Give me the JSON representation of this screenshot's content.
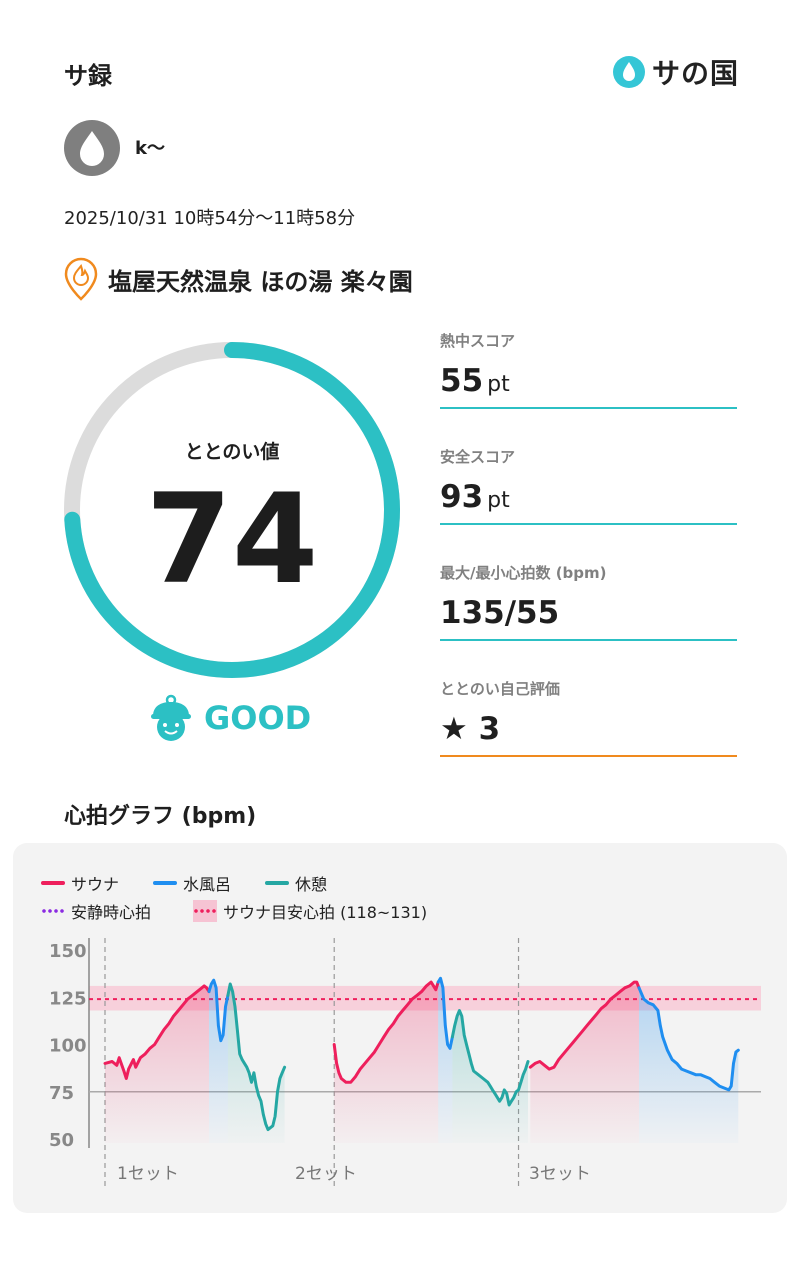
{
  "header": {
    "title": "サ録",
    "logo_text": "サの国"
  },
  "user": {
    "name": "k〜"
  },
  "session": {
    "datetime": "2025/10/31 10時54分〜11時58分"
  },
  "facility": {
    "name": "塩屋天然温泉 ほの湯 楽々園"
  },
  "score": {
    "label": "ととのい値",
    "value": "74",
    "fraction": 0.74,
    "status": "GOOD"
  },
  "metrics": [
    {
      "label": "熱中スコア",
      "value": "55",
      "unit": "pt"
    },
    {
      "label": "安全スコア",
      "value": "93",
      "unit": "pt"
    },
    {
      "label": "最大/最小心拍数 (bpm)",
      "value": "135/55",
      "unit": ""
    },
    {
      "label": "ととのい自己評価",
      "value": "★ 3",
      "unit": ""
    }
  ],
  "graph": {
    "title": "心拍グラフ (bpm)",
    "legend": {
      "sauna": "サウナ",
      "cold": "水風呂",
      "rest": "休憩",
      "resting": "安静時心拍",
      "target": "サウナ目安心拍 (118~131)"
    },
    "set_labels": [
      "1セット",
      "2セット",
      "3セット"
    ]
  },
  "colors": {
    "accent": "#2cc0c4",
    "sauna": "#ee1f5c",
    "cold": "#1f8ef0",
    "rest": "#25a7a3",
    "resting": "#8b2be2",
    "orange": "#f08a1e"
  },
  "chart_data": {
    "type": "line",
    "ylim": [
      45,
      155
    ],
    "yticks": [
      50,
      75,
      100,
      125,
      150
    ],
    "target_range": [
      118,
      131
    ],
    "target_line": 124,
    "resting_line": 75,
    "series": [
      {
        "name": "サウナ",
        "segments": [
          [
            [
              0,
              90
            ],
            [
              3,
              91
            ],
            [
              5,
              89
            ],
            [
              6,
              93
            ],
            [
              8,
              86
            ],
            [
              9,
              82
            ],
            [
              10,
              87
            ],
            [
              12,
              92
            ],
            [
              13,
              88
            ],
            [
              15,
              93
            ],
            [
              17,
              95
            ],
            [
              19,
              98
            ],
            [
              21,
              100
            ],
            [
              23,
              104
            ],
            [
              25,
              108
            ],
            [
              27,
              111
            ],
            [
              29,
              115
            ],
            [
              31,
              118
            ],
            [
              33,
              121
            ],
            [
              35,
              124
            ],
            [
              37,
              126
            ],
            [
              39,
              128
            ],
            [
              41,
              130
            ],
            [
              42,
              131
            ],
            [
              43,
              130
            ],
            [
              44,
              128
            ]
          ],
          [
            [
              97,
              100
            ],
            [
              98,
              90
            ],
            [
              99,
              85
            ],
            [
              100,
              82
            ],
            [
              102,
              80
            ],
            [
              104,
              80
            ],
            [
              106,
              83
            ],
            [
              108,
              87
            ],
            [
              110,
              90
            ],
            [
              112,
              93
            ],
            [
              114,
              96
            ],
            [
              116,
              100
            ],
            [
              118,
              104
            ],
            [
              120,
              108
            ],
            [
              122,
              111
            ],
            [
              124,
              115
            ],
            [
              126,
              118
            ],
            [
              128,
              121
            ],
            [
              130,
              124
            ],
            [
              132,
              126
            ],
            [
              134,
              128
            ],
            [
              136,
              131
            ],
            [
              138,
              133
            ],
            [
              139,
              131
            ],
            [
              140,
              129
            ],
            [
              141,
              133
            ]
          ],
          [
            [
              180,
              88
            ],
            [
              182,
              90
            ],
            [
              184,
              91
            ],
            [
              186,
              89
            ],
            [
              188,
              87
            ],
            [
              190,
              88
            ],
            [
              192,
              92
            ],
            [
              194,
              95
            ],
            [
              196,
              98
            ],
            [
              198,
              101
            ],
            [
              200,
              104
            ],
            [
              202,
              107
            ],
            [
              204,
              110
            ],
            [
              206,
              113
            ],
            [
              208,
              116
            ],
            [
              210,
              119
            ],
            [
              212,
              121
            ],
            [
              214,
              124
            ],
            [
              216,
              126
            ],
            [
              218,
              128
            ],
            [
              220,
              130
            ],
            [
              222,
              131
            ],
            [
              224,
              133
            ],
            [
              225,
              133
            ],
            [
              226,
              130
            ]
          ]
        ]
      },
      {
        "name": "水風呂",
        "segments": [
          [
            [
              44,
              128
            ],
            [
              45,
              132
            ],
            [
              46,
              134
            ],
            [
              47,
              130
            ],
            [
              48,
              110
            ],
            [
              49,
              102
            ],
            [
              50,
              105
            ],
            [
              51,
              120
            ],
            [
              52,
              126
            ]
          ],
          [
            [
              141,
              133
            ],
            [
              142,
              135
            ],
            [
              143,
              130
            ],
            [
              144,
              110
            ],
            [
              145,
              100
            ],
            [
              146,
              98
            ],
            [
              147,
              104
            ]
          ],
          [
            [
              226,
              130
            ],
            [
              228,
              124
            ],
            [
              230,
              122
            ],
            [
              232,
              121
            ],
            [
              234,
              118
            ],
            [
              235,
              110
            ],
            [
              236,
              104
            ],
            [
              238,
              97
            ],
            [
              240,
              92
            ],
            [
              242,
              90
            ],
            [
              244,
              87
            ],
            [
              246,
              86
            ],
            [
              248,
              85
            ],
            [
              250,
              84
            ],
            [
              252,
              84
            ],
            [
              254,
              83
            ],
            [
              256,
              82
            ],
            [
              258,
              80
            ],
            [
              260,
              78
            ],
            [
              262,
              77
            ],
            [
              264,
              76
            ],
            [
              265,
              78
            ],
            [
              266,
              90
            ],
            [
              267,
              96
            ],
            [
              268,
              97
            ]
          ]
        ]
      },
      {
        "name": "休憩",
        "segments": [
          [
            [
              52,
              126
            ],
            [
              53,
              132
            ],
            [
              54,
              128
            ],
            [
              55,
              120
            ],
            [
              56,
              108
            ],
            [
              57,
              95
            ],
            [
              58,
              92
            ],
            [
              60,
              88
            ],
            [
              61,
              85
            ],
            [
              62,
              80
            ],
            [
              63,
              85
            ],
            [
              64,
              78
            ],
            [
              65,
              73
            ],
            [
              66,
              70
            ],
            [
              67,
              63
            ],
            [
              68,
              58
            ],
            [
              69,
              55
            ],
            [
              70,
              56
            ],
            [
              71,
              57
            ],
            [
              72,
              62
            ],
            [
              73,
              75
            ],
            [
              74,
              82
            ],
            [
              75,
              85
            ],
            [
              76,
              88
            ]
          ],
          [
            [
              147,
              104
            ],
            [
              148,
              110
            ],
            [
              149,
              115
            ],
            [
              150,
              118
            ],
            [
              151,
              115
            ],
            [
              152,
              105
            ],
            [
              153,
              100
            ],
            [
              154,
              95
            ],
            [
              155,
              90
            ],
            [
              156,
              86
            ],
            [
              158,
              84
            ],
            [
              160,
              82
            ],
            [
              162,
              80
            ],
            [
              163,
              78
            ],
            [
              164,
              76
            ],
            [
              165,
              74
            ],
            [
              166,
              72
            ],
            [
              167,
              70
            ],
            [
              168,
              72
            ],
            [
              169,
              76
            ],
            [
              170,
              74
            ],
            [
              171,
              68
            ],
            [
              172,
              70
            ],
            [
              173,
              72
            ],
            [
              174,
              75
            ],
            [
              175,
              76
            ],
            [
              176,
              80
            ],
            [
              177,
              84
            ],
            [
              178,
              87
            ],
            [
              179,
              91
            ]
          ]
        ]
      }
    ],
    "set_markers": [
      0,
      97,
      175
    ]
  }
}
